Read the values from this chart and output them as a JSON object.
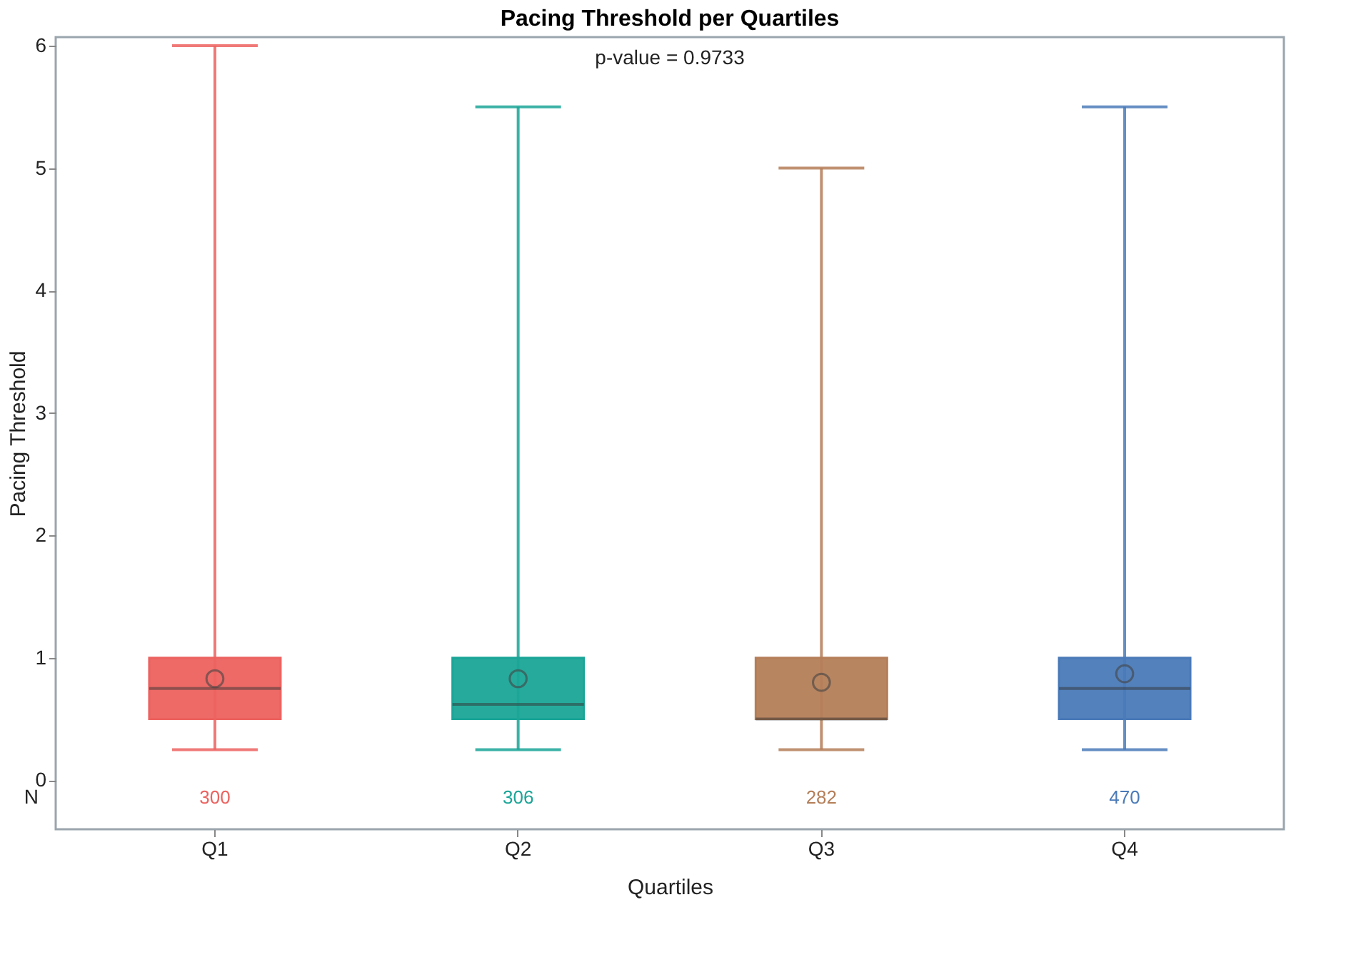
{
  "chart_data": {
    "type": "box",
    "title": "Pacing Threshold per Quartiles",
    "xlabel": "Quartiles",
    "ylabel": "Pacing Threshold",
    "categories": [
      "Q1",
      "Q2",
      "Q3",
      "Q4"
    ],
    "colors": [
      "#ec625f",
      "#1aa597",
      "#b47e58",
      "#4a7ab8"
    ],
    "boxes": [
      {
        "low": 0.25,
        "q1": 0.5,
        "median": 0.75,
        "q3": 1.0,
        "high": 6.0,
        "mean": 0.83
      },
      {
        "low": 0.25,
        "q1": 0.5,
        "median": 0.62,
        "q3": 1.0,
        "high": 5.5,
        "mean": 0.83
      },
      {
        "low": 0.25,
        "q1": 0.5,
        "median": 0.5,
        "q3": 1.0,
        "high": 5.0,
        "mean": 0.8
      },
      {
        "low": 0.25,
        "q1": 0.5,
        "median": 0.75,
        "q3": 1.0,
        "high": 5.5,
        "mean": 0.87
      }
    ],
    "ylim": [
      -0.4,
      6.07
    ],
    "yticks": [
      0,
      1,
      2,
      3,
      4,
      5,
      6
    ],
    "annotations": [
      "p-value = 0.9733",
      "N",
      "300",
      "306",
      "282",
      "470"
    ]
  }
}
